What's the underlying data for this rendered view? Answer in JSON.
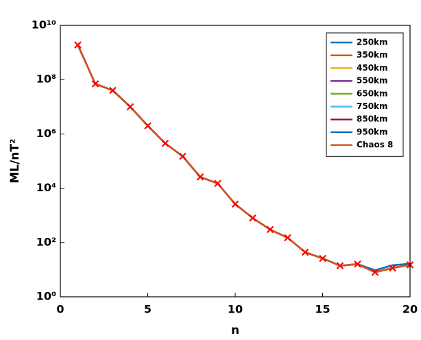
{
  "chart_data": {
    "type": "line",
    "xlabel": "n",
    "ylabel": "ML/nT²",
    "x": [
      1,
      2,
      3,
      4,
      5,
      6,
      7,
      8,
      9,
      10,
      11,
      12,
      13,
      14,
      15,
      16,
      17,
      18,
      19,
      20
    ],
    "xlim": [
      0,
      20
    ],
    "xticks": [
      0,
      5,
      10,
      15,
      20
    ],
    "ylim": [
      1,
      10000000000
    ],
    "yscale": "log",
    "yticks": [
      {
        "value": 1,
        "label": "10⁰"
      },
      {
        "value": 100,
        "label": "10²"
      },
      {
        "value": 10000,
        "label": "10⁴"
      },
      {
        "value": 1000000,
        "label": "10⁶"
      },
      {
        "value": 100000000,
        "label": "10⁸"
      },
      {
        "value": 10000000000,
        "label": "10¹⁰"
      }
    ],
    "legend": "upper right",
    "series": [
      {
        "name": "250km",
        "color": "#0072bd",
        "values": [
          1900000000,
          70000000,
          40000000,
          10000000,
          2000000,
          450000,
          150000,
          26000,
          15000,
          2600,
          800,
          300,
          150,
          44,
          26,
          14,
          16,
          9.5,
          14.5,
          16.5
        ]
      },
      {
        "name": "350km",
        "color": "#d95319",
        "values": [
          1900000000,
          70000000,
          40000000,
          10000000,
          2000000,
          450000,
          150000,
          26000,
          15000,
          2600,
          800,
          300,
          150,
          44,
          26,
          14,
          16,
          8,
          11.5,
          15
        ]
      },
      {
        "name": "450km",
        "color": "#edb120",
        "values": [
          1900000000,
          70000000,
          40000000,
          10000000,
          2000000,
          450000,
          150000,
          26000,
          15000,
          2600,
          800,
          300,
          150,
          44,
          26,
          14,
          16,
          8,
          11.5,
          15
        ]
      },
      {
        "name": "550km",
        "color": "#7e2f8e",
        "values": [
          1900000000,
          70000000,
          40000000,
          10000000,
          2000000,
          450000,
          150000,
          26000,
          15000,
          2600,
          800,
          300,
          150,
          44,
          26,
          14,
          16,
          8,
          11.5,
          15
        ]
      },
      {
        "name": "650km",
        "color": "#77ac30",
        "values": [
          1900000000,
          70000000,
          40000000,
          10000000,
          2000000,
          450000,
          150000,
          26000,
          15000,
          2600,
          800,
          300,
          150,
          44,
          26,
          14,
          16,
          8,
          11.5,
          15
        ]
      },
      {
        "name": "750km",
        "color": "#4dbeee",
        "values": [
          1900000000,
          70000000,
          40000000,
          10000000,
          2000000,
          450000,
          150000,
          26000,
          15000,
          2600,
          800,
          300,
          150,
          44,
          26,
          14,
          16,
          8,
          11.5,
          15
        ]
      },
      {
        "name": "850km",
        "color": "#a2142f",
        "values": [
          1900000000,
          70000000,
          40000000,
          10000000,
          2000000,
          450000,
          150000,
          26000,
          15000,
          2600,
          800,
          300,
          150,
          44,
          26,
          14,
          16,
          8,
          11.5,
          15
        ]
      },
      {
        "name": "950km",
        "color": "#0072bd",
        "values": [
          1900000000,
          70000000,
          40000000,
          10000000,
          2000000,
          450000,
          150000,
          26000,
          15000,
          2600,
          800,
          300,
          150,
          44,
          26,
          14,
          16,
          9.5,
          14.5,
          16.5
        ]
      },
      {
        "name": "Chaos 8",
        "color": "#d95319",
        "marker": "x",
        "marker_color": "#ff0000",
        "values": [
          1900000000,
          70000000,
          40000000,
          10000000,
          2000000,
          450000,
          150000,
          26000,
          15000,
          2600,
          800,
          300,
          150,
          44,
          26,
          14,
          16,
          8,
          11.5,
          15
        ]
      }
    ]
  }
}
